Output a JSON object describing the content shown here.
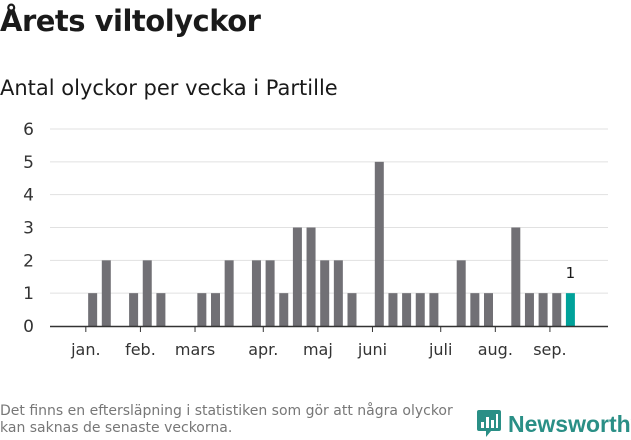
{
  "title": "Årets viltolyckor",
  "subtitle": "Antal olyckor per vecka i Partille",
  "footnote": "Det finns en eftersläpning i statistiken som gör att några olyckor kan saknas de senaste veckorna.",
  "logo_text": "Newsworthy",
  "logo_icon": "newsworthy-chart-icon",
  "colors": {
    "bar": "#717075",
    "highlight": "#00a29a",
    "grid": "#e1e1e1",
    "axis": "#333333",
    "logo": "#2a8f86"
  },
  "chart_data": {
    "type": "bar",
    "title": "Antal olyckor per vecka i Partille",
    "xlabel": "",
    "ylabel": "",
    "ylim": [
      0,
      6
    ],
    "yticks": [
      0,
      1,
      2,
      3,
      4,
      5,
      6
    ],
    "grid": true,
    "legend": "none",
    "weeks": [
      1,
      2,
      3,
      4,
      5,
      6,
      7,
      8,
      9,
      10,
      11,
      12,
      13,
      14,
      15,
      16,
      17,
      18,
      19,
      20,
      21,
      22,
      23,
      24,
      25,
      26,
      27,
      28,
      29,
      30,
      31,
      32,
      33,
      34,
      35,
      36,
      37,
      38,
      39
    ],
    "values": [
      0,
      1,
      2,
      0,
      1,
      2,
      1,
      0,
      0,
      1,
      1,
      2,
      0,
      2,
      2,
      1,
      3,
      3,
      2,
      2,
      1,
      0,
      5,
      1,
      1,
      1,
      1,
      0,
      2,
      1,
      1,
      0,
      3,
      1,
      1,
      1,
      1,
      null,
      null
    ],
    "month_labels": [
      {
        "label": "jan.",
        "week": 1.5
      },
      {
        "label": "feb.",
        "week": 5.5
      },
      {
        "label": "mars",
        "week": 9.5
      },
      {
        "label": "apr.",
        "week": 14.5
      },
      {
        "label": "maj",
        "week": 18.5
      },
      {
        "label": "juni",
        "week": 22.5
      },
      {
        "label": "juli",
        "week": 27.5
      },
      {
        "label": "aug.",
        "week": 31.5
      },
      {
        "label": "sep.",
        "week": 35.5
      }
    ],
    "highlight_week": 37,
    "highlight_label": "1"
  }
}
